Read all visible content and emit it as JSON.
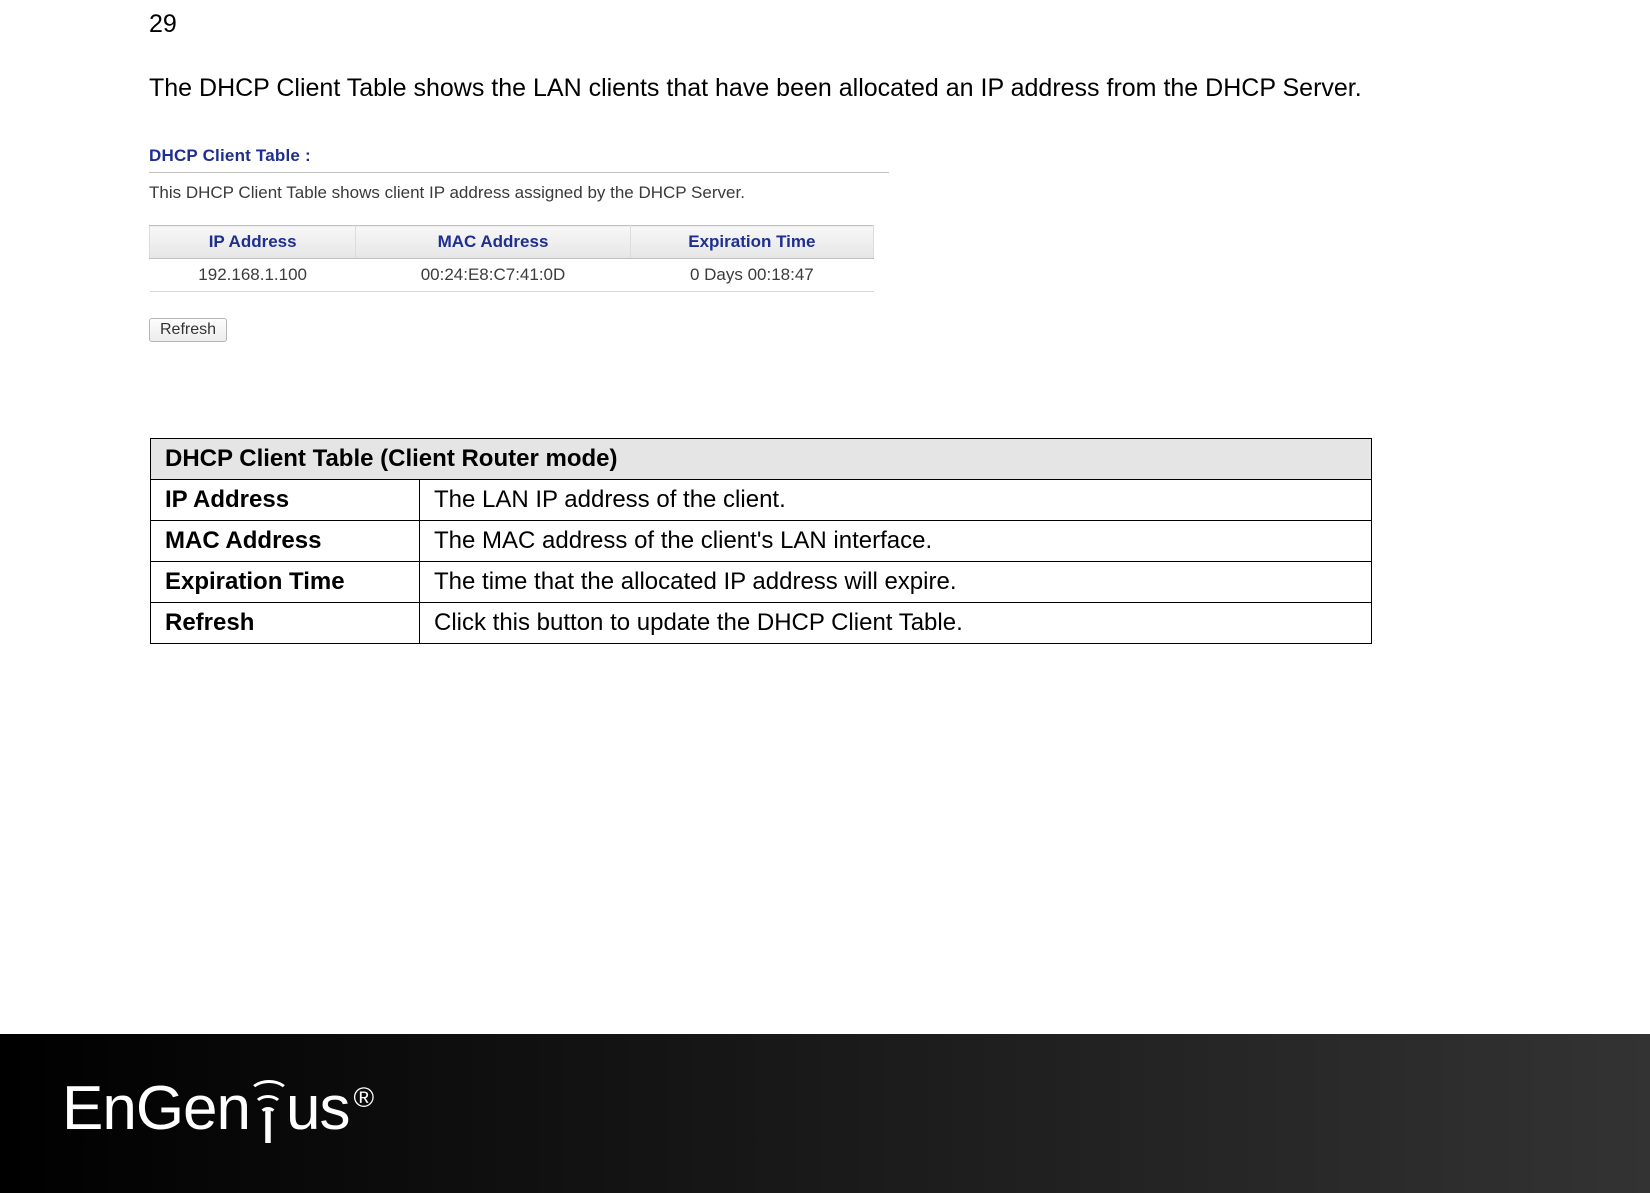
{
  "page_number": "29",
  "intro": "The DHCP Client Table shows the LAN clients that have been allocated an IP address from the DHCP Server.",
  "screenshot": {
    "title": "DHCP Client Table :",
    "subtitle": "This DHCP Client Table shows client IP address assigned by the DHCP Server.",
    "columns": [
      "IP Address",
      "MAC Address",
      "Expiration Time"
    ],
    "rows": [
      [
        "192.168.1.100",
        "00:24:E8:C7:41:0D",
        "0 Days 00:18:47"
      ]
    ],
    "refresh_label": "Refresh",
    "colors": {
      "header_text": "#1f2f8f",
      "border": "#bfbfbf",
      "cell_text": "#3c3c3c",
      "bg_grad_top": "#f7f7f7",
      "bg_grad_bottom": "#e6e6e6"
    }
  },
  "desc_table": {
    "header": "DHCP Client Table (Client Router mode)",
    "rows": [
      [
        "IP Address",
        "The LAN IP address of the client."
      ],
      [
        "MAC Address",
        "The MAC address of the client's LAN interface."
      ],
      [
        "Expiration Time",
        "The time that the allocated IP address will expire."
      ],
      [
        "Refresh",
        "Click this button to update the DHCP Client Table."
      ]
    ],
    "header_bg": "#e5e5e5"
  },
  "footer": {
    "brand_left": "EnGen",
    "brand_right": "us",
    "registered": "®",
    "bg_left": "#000000",
    "bg_right": "#333333"
  }
}
